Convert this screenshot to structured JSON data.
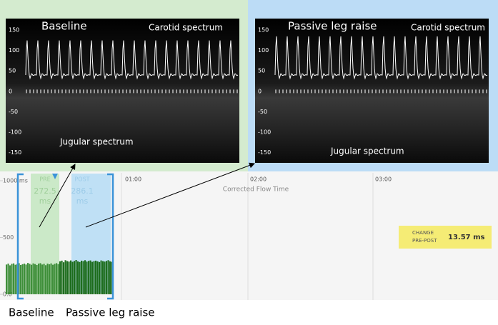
{
  "panels": [
    {
      "title": "Baseline",
      "top_label": "Carotid spectrum",
      "bottom_label": "Jugular spectrum",
      "ylim": [
        -175,
        178
      ],
      "yticks": [
        150,
        100,
        50,
        0,
        -50,
        -100,
        -150
      ]
    },
    {
      "title": "Passive leg raise",
      "top_label": "Carotid spectrum",
      "bottom_label": "Jugular spectrum",
      "ylim": [
        -175,
        178
      ],
      "yticks": [
        150,
        100,
        50,
        0,
        -50,
        -100,
        -150
      ]
    }
  ],
  "chart_data": {
    "type": "bar",
    "xlabel": "Corrected Flow Time",
    "time_labels": [
      "01:00",
      "02:00",
      "03:00"
    ],
    "ylim": [
      0,
      1000
    ],
    "yticks": [
      {
        "value": 1000,
        "label": "1000 ms"
      },
      500,
      {
        "value": 0,
        "label": "0.0"
      }
    ],
    "series": [
      {
        "color": "#3f8f3a",
        "values": [
          262,
          270,
          255,
          268,
          272,
          260,
          266,
          274,
          258,
          265,
          270,
          262,
          276,
          268,
          260,
          272,
          266,
          258,
          270,
          274,
          262,
          268,
          256,
          270,
          264,
          272,
          260,
          268,
          274,
          266
        ]
      },
      {
        "color": "#1d6d1d",
        "values": [
          290,
          296,
          282,
          300,
          292,
          288,
          298,
          286,
          294,
          302,
          290,
          284,
          296,
          292,
          300,
          288,
          294,
          298,
          286,
          292,
          296,
          290,
          284,
          298,
          292,
          288,
          294,
          300,
          290,
          286
        ]
      }
    ],
    "pre": {
      "label": "PRE",
      "value_text": "272.5",
      "unit": "ms"
    },
    "post": {
      "label": "POST",
      "value_text": "286.1",
      "unit": "ms"
    },
    "change": {
      "label_1": "CHANGE",
      "label_2": "PRE-POST",
      "value_label": "13.57 ms"
    }
  },
  "captions": [
    "Baseline",
    "Passive leg raise"
  ]
}
